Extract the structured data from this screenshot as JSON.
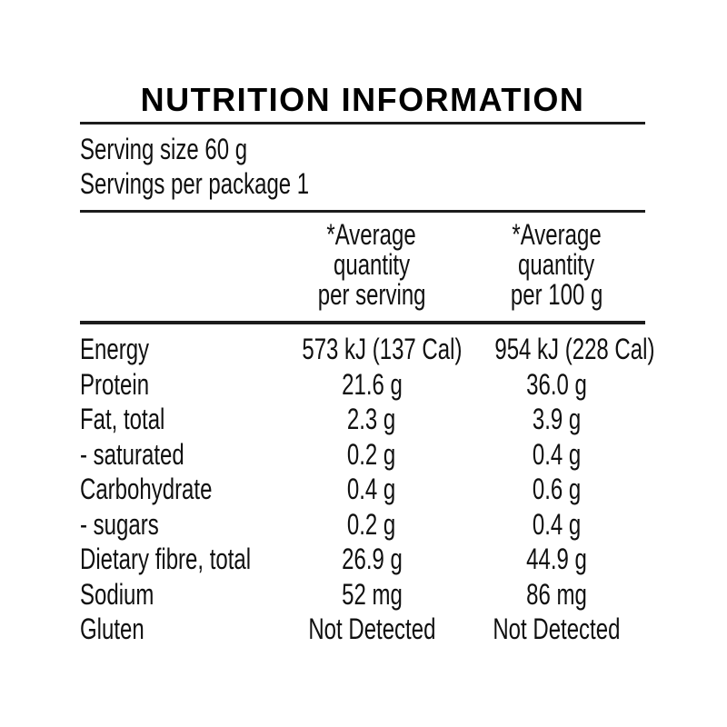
{
  "colors": {
    "background": "#ffffff",
    "text": "#101010",
    "rule": "#1c1c1c"
  },
  "panel": {
    "title": "NUTRITION INFORMATION",
    "serving_lines": [
      "Serving size 60 g",
      "Servings per package 1"
    ],
    "col_serving": [
      "*Average",
      "quantity",
      "per serving"
    ],
    "col_100g": [
      "*Average",
      "quantity",
      "per 100 g"
    ],
    "rows": [
      {
        "label": "Energy",
        "serving": "573 kJ (137 Cal)",
        "per100": "954 kJ (228 Cal)"
      },
      {
        "label": "Protein",
        "serving": "21.6 g",
        "per100": "36.0 g"
      },
      {
        "label": "Fat, total",
        "serving": "2.3 g",
        "per100": "3.9 g"
      },
      {
        "label": "- saturated",
        "serving": "0.2 g",
        "per100": "0.4 g"
      },
      {
        "label": "Carbohydrate",
        "serving": "0.4 g",
        "per100": "0.6 g"
      },
      {
        "label": "- sugars",
        "serving": "0.2 g",
        "per100": "0.4 g"
      },
      {
        "label": "Dietary fibre, total",
        "serving": "26.9 g",
        "per100": "44.9 g"
      },
      {
        "label": "Sodium",
        "serving": "52 mg",
        "per100": "86 mg"
      },
      {
        "label": "Gluten",
        "serving": "Not Detected",
        "per100": "Not Detected"
      }
    ]
  }
}
